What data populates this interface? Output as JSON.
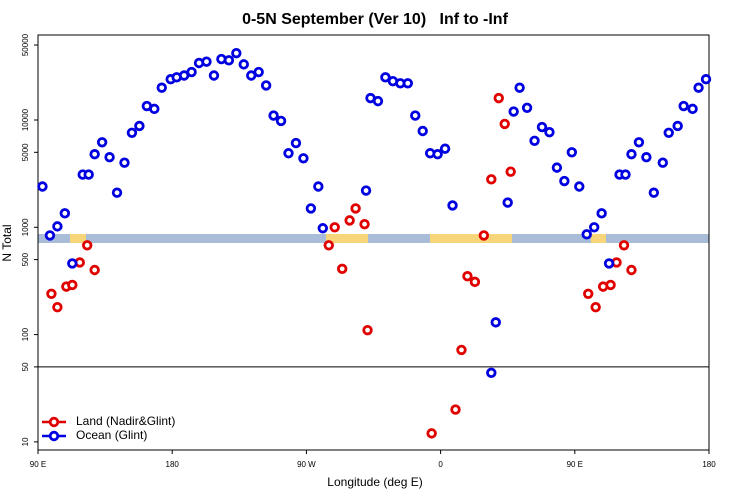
{
  "chart_data": {
    "type": "scatter",
    "title": "0-5N September (Ver 10)   Inf to -Inf",
    "x_label": "Longitude (deg E)",
    "y_label": "N Total",
    "log_y": true,
    "legend": "bottomleft",
    "xlim": [
      90,
      540
    ],
    "ylim": [
      8.4,
      62000
    ],
    "xticks": [
      {
        "value": 90,
        "label": "90 E"
      },
      180,
      {
        "value": 270,
        "label": "90 W"
      },
      {
        "value": 360,
        "label": "0"
      },
      {
        "value": 450,
        "label": "90 E"
      },
      {
        "value": 540,
        "label": "180"
      }
    ],
    "yticks": [
      10,
      50,
      100,
      500,
      1000,
      5000,
      10000,
      50000
    ],
    "hline": 50,
    "series": [
      {
        "name": "Land (Nadir&Glint)",
        "color": "#e00000",
        "x": [
          99,
          103,
          109,
          113,
          118,
          123,
          128,
          285,
          289,
          294,
          299,
          303,
          309,
          311,
          354,
          370,
          374,
          378,
          383,
          389,
          394,
          399,
          403,
          407,
          459,
          464,
          469,
          474,
          478,
          483,
          488
        ],
        "values": [
          240,
          180,
          280,
          290,
          470,
          680,
          400,
          680,
          1000,
          410,
          1160,
          1500,
          1070,
          110,
          12,
          20,
          72,
          350,
          310,
          840,
          2800,
          16000,
          9200,
          3300,
          240,
          180,
          280,
          290,
          470,
          680,
          400
        ]
      },
      {
        "name": "Ocean (Glint)",
        "color": "#0000e0",
        "x": [
          93,
          98,
          103,
          108,
          113,
          120,
          124,
          128,
          133,
          138,
          143,
          148,
          153,
          158,
          163,
          168,
          173,
          179,
          183,
          188,
          193,
          198,
          203,
          208,
          213,
          218,
          223,
          228,
          233,
          238,
          243,
          248,
          253,
          258,
          263,
          268,
          273,
          278,
          281,
          310,
          313,
          318,
          323,
          328,
          333,
          338,
          343,
          348,
          353,
          358,
          363,
          368,
          394,
          397,
          405,
          409,
          413,
          418,
          423,
          428,
          433,
          438,
          443,
          448,
          453,
          458,
          463,
          468,
          473,
          480,
          484,
          488,
          493,
          498,
          503,
          509,
          513,
          519,
          523,
          529,
          533,
          538
        ],
        "values": [
          2400,
          840,
          1020,
          1350,
          460,
          3100,
          3100,
          4800,
          6200,
          4500,
          2100,
          4000,
          7600,
          8800,
          13500,
          12700,
          20000,
          24000,
          25000,
          26000,
          28000,
          34000,
          35000,
          26000,
          37000,
          36000,
          42000,
          33000,
          26000,
          28000,
          21000,
          11000,
          9800,
          4900,
          6100,
          4400,
          1500,
          2400,
          980,
          2200,
          16000,
          15000,
          25000,
          23000,
          22000,
          22000,
          11000,
          7900,
          4900,
          4800,
          5400,
          1600,
          44,
          130,
          1700,
          12000,
          20000,
          13000,
          6400,
          8600,
          7700,
          3600,
          2700,
          5000,
          2400,
          860,
          1000,
          1350,
          460,
          3100,
          3100,
          4800,
          6200,
          4500,
          2100,
          4000,
          7600,
          8800,
          13500,
          12700,
          20000,
          24000
        ]
      }
    ]
  }
}
